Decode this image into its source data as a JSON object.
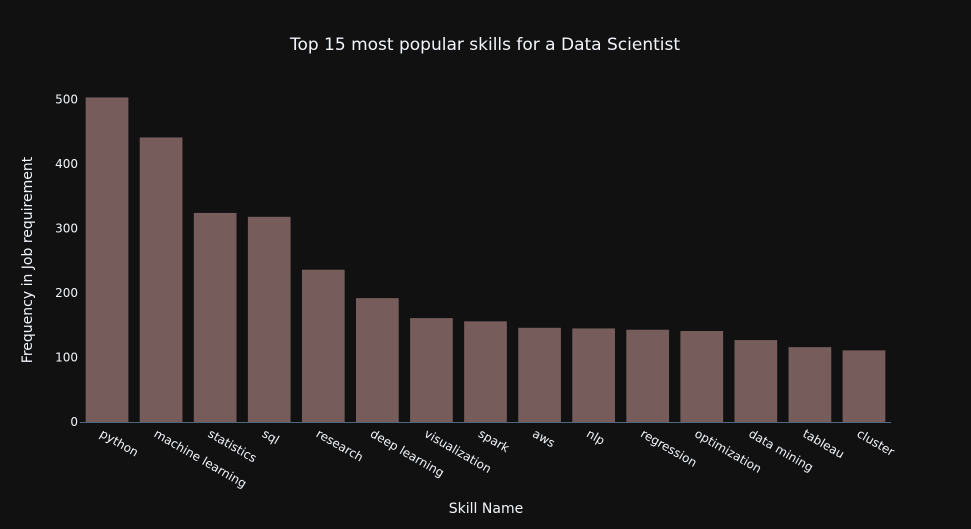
{
  "chart_data": {
    "type": "bar",
    "title": "Top 15 most popular skills for a Data Scientist",
    "xlabel": "Skill Name",
    "ylabel": "Frequency in Job requirement",
    "categories": [
      "python",
      "machine learning",
      "statistics",
      "sql",
      "research",
      "deep learning",
      "visualization",
      "spark",
      "aws",
      "nlp",
      "regression",
      "optimization",
      "data mining",
      "tableau",
      "cluster"
    ],
    "values": [
      503,
      441,
      324,
      318,
      236,
      192,
      161,
      156,
      146,
      145,
      143,
      141,
      127,
      116,
      111
    ],
    "ylim": [
      0,
      530
    ],
    "yticks": [
      0,
      100,
      200,
      300,
      400,
      500
    ],
    "grid": false,
    "legend": "none",
    "colors": {
      "background": "#111111",
      "bar": "#765D5B",
      "axis_line": "#506784",
      "text": "#f2f5fa"
    }
  }
}
